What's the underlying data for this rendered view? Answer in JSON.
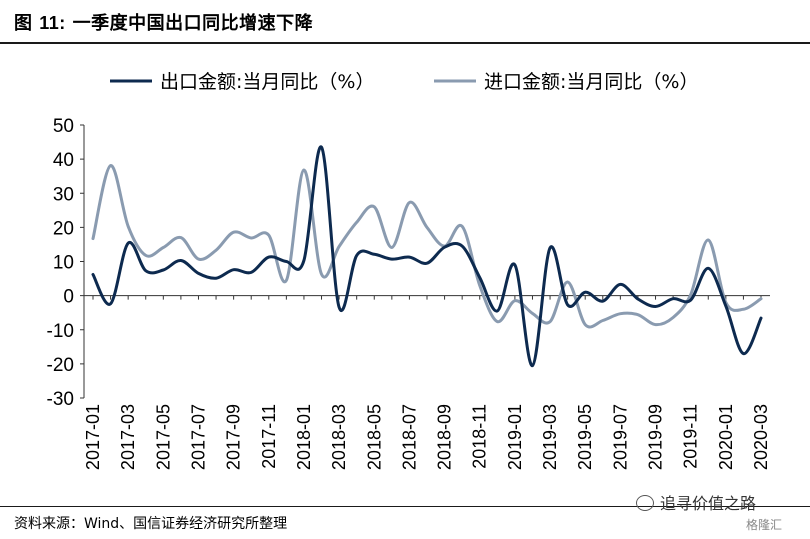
{
  "figure": {
    "label": "图",
    "number": "11:",
    "title": "一季度中国出口同比增速下降"
  },
  "source": "资料来源：Wind、国信证券经济研究所整理",
  "watermark": "追寻价值之路",
  "watermark_small": "格隆汇",
  "chart_data": {
    "type": "line",
    "legend_position": "top",
    "ylim": [
      -30,
      50
    ],
    "yticks": [
      -30,
      -20,
      -10,
      0,
      10,
      20,
      30,
      40,
      50
    ],
    "ytick_labels": [
      "-30",
      "-20",
      "-10",
      "0",
      "10",
      "20",
      "30",
      "40",
      "50"
    ],
    "x": [
      "2017-01",
      "2017-02",
      "2017-03",
      "2017-04",
      "2017-05",
      "2017-06",
      "2017-07",
      "2017-08",
      "2017-09",
      "2017-10",
      "2017-11",
      "2017-12",
      "2018-01",
      "2018-02",
      "2018-03",
      "2018-04",
      "2018-05",
      "2018-06",
      "2018-07",
      "2018-08",
      "2018-09",
      "2018-10",
      "2018-11",
      "2018-12",
      "2019-01",
      "2019-02",
      "2019-03",
      "2019-04",
      "2019-05",
      "2019-06",
      "2019-07",
      "2019-08",
      "2019-09",
      "2019-10",
      "2019-11",
      "2019-12",
      "2020-01",
      "2020-02",
      "2020-03"
    ],
    "xtick_labels": [
      "2017-01",
      "2017-03",
      "2017-05",
      "2017-07",
      "2017-09",
      "2017-11",
      "2018-01",
      "2018-03",
      "2018-05",
      "2018-07",
      "2018-09",
      "2018-11",
      "2019-01",
      "2019-03",
      "2019-05",
      "2019-07",
      "2019-09",
      "2019-11",
      "2020-01",
      "2020-03"
    ],
    "series": [
      {
        "name": "出口金额:当月同比（%）",
        "color": "#0d2a4f",
        "values": [
          6.2,
          -2.4,
          15.4,
          7.3,
          7.5,
          10.3,
          6.5,
          5.1,
          7.6,
          6.8,
          11.3,
          10.0,
          10.3,
          43.5,
          -3.4,
          11.8,
          12.1,
          10.7,
          11.3,
          9.5,
          14.2,
          14.5,
          5.3,
          -4.5,
          9.0,
          -20.5,
          14.0,
          -2.7,
          1.0,
          -1.6,
          3.3,
          -1.0,
          -3.2,
          -0.9,
          -1.3,
          8.0,
          -3.0,
          -17.0,
          -6.6
        ]
      },
      {
        "name": "进口金额:当月同比（%）",
        "color": "#8a9bb0",
        "values": [
          16.7,
          38.1,
          20.3,
          11.8,
          14.1,
          17.0,
          10.7,
          13.3,
          18.6,
          16.9,
          17.7,
          4.5,
          36.8,
          6.3,
          14.4,
          21.5,
          26.0,
          14.1,
          27.3,
          20.0,
          14.5,
          20.3,
          3.0,
          -7.6,
          -1.5,
          -5.2,
          -7.6,
          4.0,
          -8.5,
          -7.3,
          -5.3,
          -5.6,
          -8.5,
          -6.4,
          0.3,
          16.3,
          -2.0,
          -4.0,
          -0.9
        ]
      }
    ]
  }
}
